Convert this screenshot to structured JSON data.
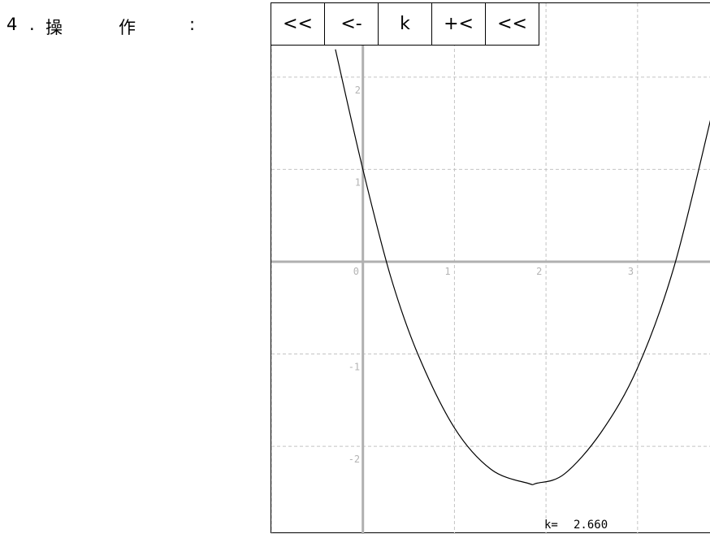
{
  "heading": {
    "number": "4",
    "dot": ".",
    "char1": "操",
    "char2": "作",
    "colon": ":"
  },
  "toolbar": {
    "buttons": [
      {
        "label": "<<"
      },
      {
        "label": "<-"
      },
      {
        "label": "k"
      },
      {
        "label": "+<"
      },
      {
        "label": "<<"
      }
    ]
  },
  "graph": {
    "x_ticks": [
      "0",
      "1",
      "2",
      "3"
    ],
    "y_ticks": [
      "2",
      "1",
      "-1",
      "-2"
    ],
    "readout_label": "k=",
    "readout_value": "2.660",
    "k": 2.66
  },
  "chart_data": {
    "type": "line",
    "title": "",
    "xlabel": "",
    "ylabel": "",
    "xlim": [
      -1.0,
      3.8
    ],
    "ylim": [
      -2.95,
      2.8
    ],
    "grid": true,
    "series": [
      {
        "x": [
          -0.3,
          0.0,
          0.3,
          0.6,
          1.0,
          1.4,
          1.8,
          1.9,
          2.2,
          2.6,
          3.0,
          3.4,
          3.8
        ],
        "y": [
          2.3,
          1.0,
          -0.15,
          -1.0,
          -1.8,
          -2.25,
          -2.4,
          -2.4,
          -2.3,
          -1.85,
          -1.15,
          -0.05,
          1.55
        ]
      }
    ]
  },
  "colors": {
    "axis": "#b0b0b0",
    "grid": "#c4c4c4",
    "curve": "#000000"
  }
}
